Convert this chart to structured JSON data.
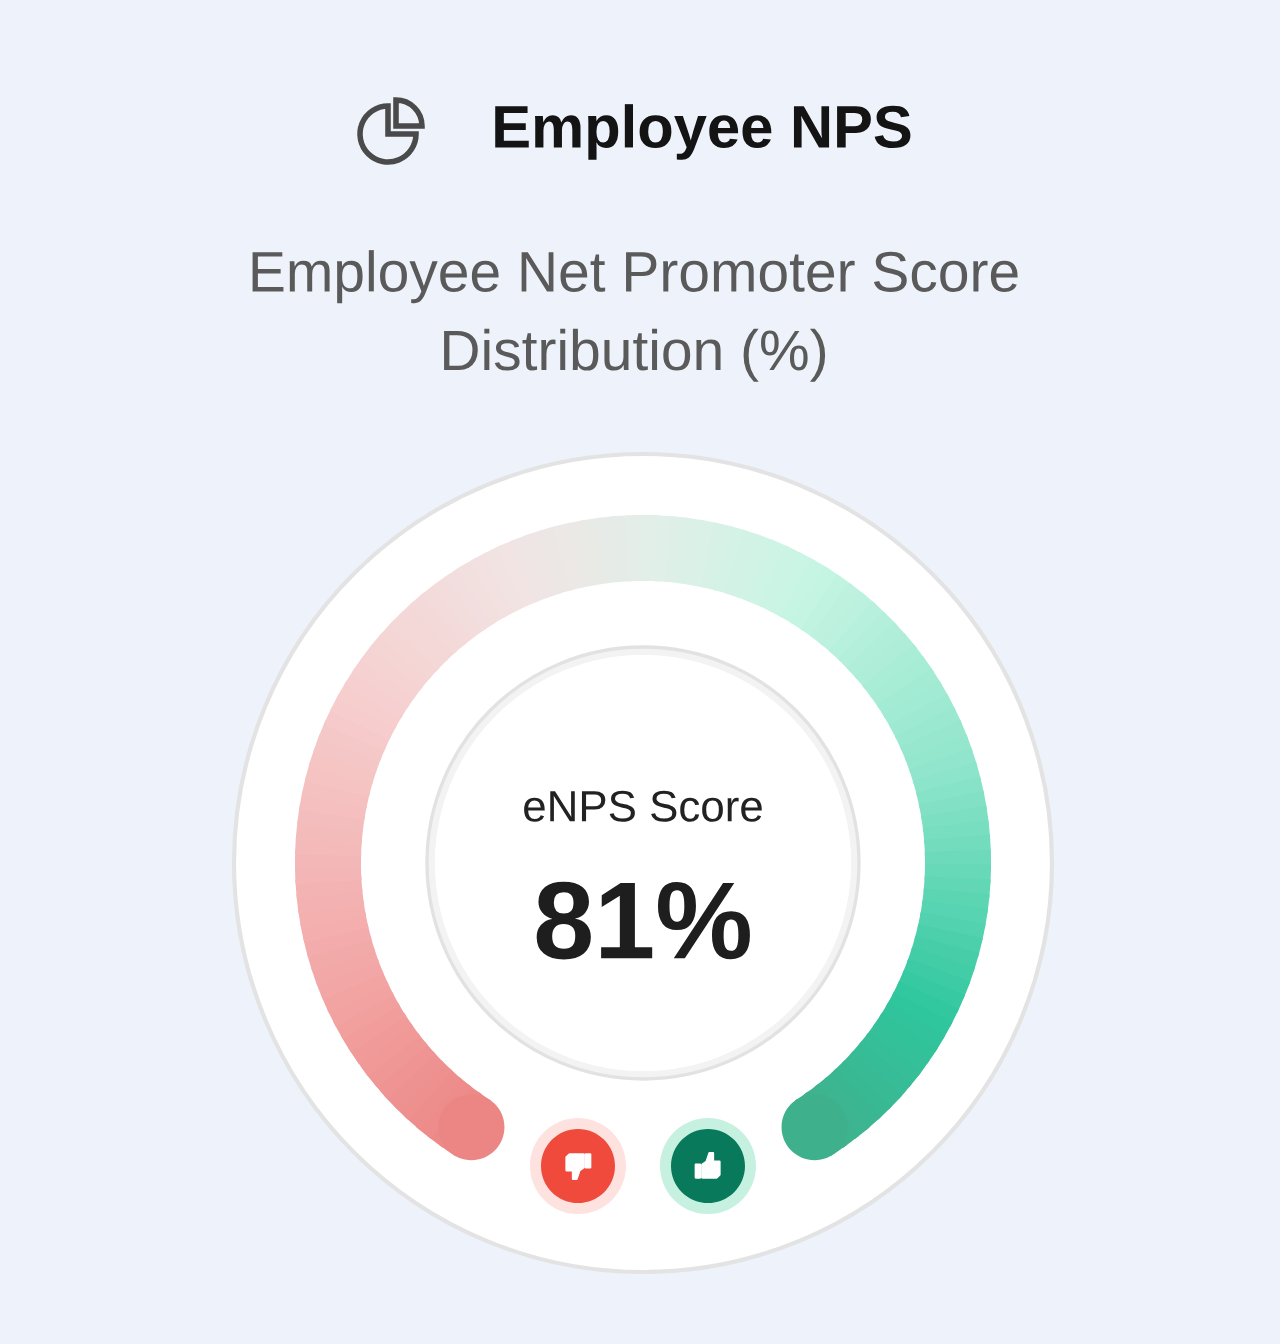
{
  "chart_data": {
    "type": "other",
    "title": "Employee NPS",
    "subtitle": "Employee Net Promoter Score\nDistribution (%)",
    "categories": [
      "eNPS Score"
    ],
    "values": [
      81
    ],
    "value_labels": [
      "81%"
    ]
  }
}
